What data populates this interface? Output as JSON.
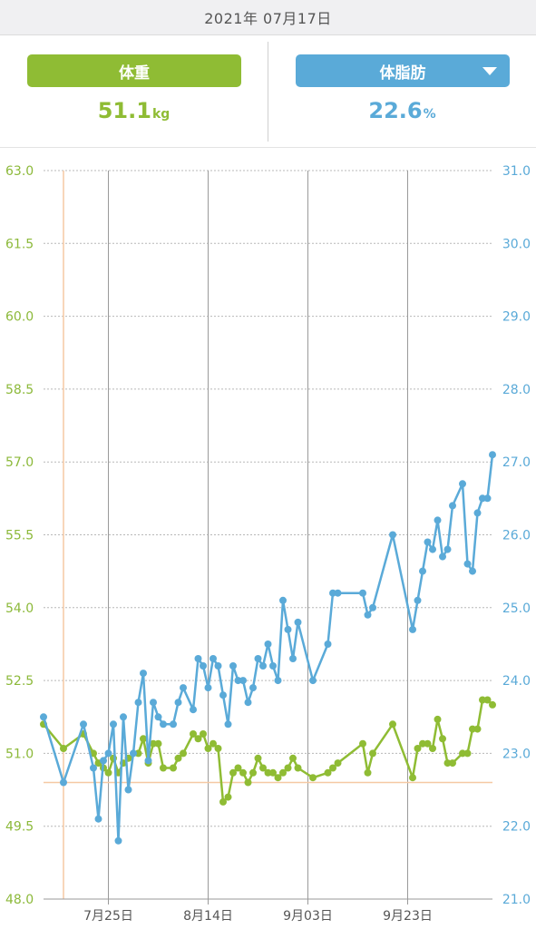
{
  "header": {
    "date": "2021年 07月17日"
  },
  "weight_panel": {
    "button_label": "体重",
    "value": "51.1",
    "unit": "kg",
    "color": "#8fbc34"
  },
  "fat_panel": {
    "button_label": "体脂肪",
    "value": "22.6",
    "unit": "%",
    "color": "#5aaad8",
    "dropdown_icon": "caret-down-icon"
  },
  "chart_data": {
    "type": "line",
    "x_tick_labels": [
      "7月25日",
      "8月14日",
      "9月03日",
      "9月23日"
    ],
    "x_tick_days": [
      9,
      29,
      49,
      69
    ],
    "left_axis": {
      "ticks": [
        "63.0",
        "61.5",
        "60.0",
        "58.5",
        "57.0",
        "55.5",
        "54.0",
        "52.5",
        "51.0",
        "49.5",
        "48.0"
      ],
      "ylim": [
        48.0,
        63.0
      ],
      "color": "#8cb93a"
    },
    "right_axis": {
      "ticks": [
        "31.0",
        "30.0",
        "29.0",
        "28.0",
        "27.0",
        "26.0",
        "25.0",
        "24.0",
        "23.0",
        "22.0",
        "21.0"
      ],
      "ylim": [
        21.0,
        31.0
      ],
      "color": "#5aaad8"
    },
    "target_weight": 50.4,
    "selected_day": 0,
    "series": [
      {
        "axis": "left",
        "color": "#8fbc34",
        "points": [
          [
            -4,
            51.6
          ],
          [
            0,
            51.1
          ],
          [
            4,
            51.4
          ],
          [
            6,
            51.0
          ],
          [
            7,
            50.8
          ],
          [
            8,
            50.7
          ],
          [
            9,
            50.6
          ],
          [
            10,
            50.9
          ],
          [
            11,
            50.6
          ],
          [
            12,
            50.8
          ],
          [
            13,
            50.9
          ],
          [
            15,
            51.0
          ],
          [
            16,
            51.3
          ],
          [
            17,
            50.8
          ],
          [
            18,
            51.2
          ],
          [
            19,
            51.2
          ],
          [
            20,
            50.7
          ],
          [
            22,
            50.7
          ],
          [
            23,
            50.9
          ],
          [
            24,
            51.0
          ],
          [
            26,
            51.4
          ],
          [
            27,
            51.3
          ],
          [
            28,
            51.4
          ],
          [
            29,
            51.1
          ],
          [
            30,
            51.2
          ],
          [
            31,
            51.1
          ],
          [
            32,
            50.0
          ],
          [
            33,
            50.1
          ],
          [
            34,
            50.6
          ],
          [
            35,
            50.7
          ],
          [
            36,
            50.6
          ],
          [
            37,
            50.4
          ],
          [
            38,
            50.6
          ],
          [
            39,
            50.9
          ],
          [
            40,
            50.7
          ],
          [
            41,
            50.6
          ],
          [
            42,
            50.6
          ],
          [
            43,
            50.5
          ],
          [
            44,
            50.6
          ],
          [
            45,
            50.7
          ],
          [
            46,
            50.9
          ],
          [
            47,
            50.7
          ],
          [
            50,
            50.5
          ],
          [
            53,
            50.6
          ],
          [
            54,
            50.7
          ],
          [
            55,
            50.8
          ],
          [
            60,
            51.2
          ],
          [
            61,
            50.6
          ],
          [
            62,
            51.0
          ],
          [
            66,
            51.6
          ],
          [
            70,
            50.5
          ],
          [
            71,
            51.1
          ],
          [
            72,
            51.2
          ],
          [
            73,
            51.2
          ],
          [
            74,
            51.1
          ],
          [
            75,
            51.7
          ],
          [
            76,
            51.3
          ],
          [
            77,
            50.8
          ],
          [
            78,
            50.8
          ],
          [
            80,
            51.0
          ],
          [
            81,
            51.0
          ],
          [
            82,
            51.5
          ],
          [
            83,
            51.5
          ],
          [
            84,
            52.1
          ],
          [
            85,
            52.1
          ],
          [
            86,
            52.0
          ]
        ]
      },
      {
        "axis": "right",
        "color": "#5aaad8",
        "points": [
          [
            -4,
            23.5
          ],
          [
            0,
            22.6
          ],
          [
            4,
            23.4
          ],
          [
            6,
            22.8
          ],
          [
            7,
            22.1
          ],
          [
            8,
            22.9
          ],
          [
            9,
            23.0
          ],
          [
            10,
            23.4
          ],
          [
            11,
            21.8
          ],
          [
            12,
            23.5
          ],
          [
            13,
            22.5
          ],
          [
            14,
            23.0
          ],
          [
            15,
            23.7
          ],
          [
            16,
            24.1
          ],
          [
            17,
            22.9
          ],
          [
            18,
            23.7
          ],
          [
            19,
            23.5
          ],
          [
            20,
            23.4
          ],
          [
            22,
            23.4
          ],
          [
            23,
            23.7
          ],
          [
            24,
            23.9
          ],
          [
            26,
            23.6
          ],
          [
            27,
            24.3
          ],
          [
            28,
            24.2
          ],
          [
            29,
            23.9
          ],
          [
            30,
            24.3
          ],
          [
            31,
            24.2
          ],
          [
            32,
            23.8
          ],
          [
            33,
            23.4
          ],
          [
            34,
            24.2
          ],
          [
            35,
            24.0
          ],
          [
            36,
            24.0
          ],
          [
            37,
            23.7
          ],
          [
            38,
            23.9
          ],
          [
            39,
            24.3
          ],
          [
            40,
            24.2
          ],
          [
            41,
            24.5
          ],
          [
            42,
            24.2
          ],
          [
            43,
            24.0
          ],
          [
            44,
            25.1
          ],
          [
            45,
            24.7
          ],
          [
            46,
            24.3
          ],
          [
            47,
            24.8
          ],
          [
            50,
            24.0
          ],
          [
            53,
            24.5
          ],
          [
            54,
            25.2
          ],
          [
            55,
            25.2
          ],
          [
            60,
            25.2
          ],
          [
            61,
            24.9
          ],
          [
            62,
            25.0
          ],
          [
            66,
            26.0
          ],
          [
            70,
            24.7
          ],
          [
            71,
            25.1
          ],
          [
            72,
            25.5
          ],
          [
            73,
            25.9
          ],
          [
            74,
            25.8
          ],
          [
            75,
            26.2
          ],
          [
            76,
            25.7
          ],
          [
            77,
            25.8
          ],
          [
            78,
            26.4
          ],
          [
            80,
            26.7
          ],
          [
            81,
            25.6
          ],
          [
            82,
            25.5
          ],
          [
            83,
            26.3
          ],
          [
            84,
            26.5
          ],
          [
            85,
            26.5
          ],
          [
            87,
            27.1
          ]
        ]
      }
    ]
  }
}
